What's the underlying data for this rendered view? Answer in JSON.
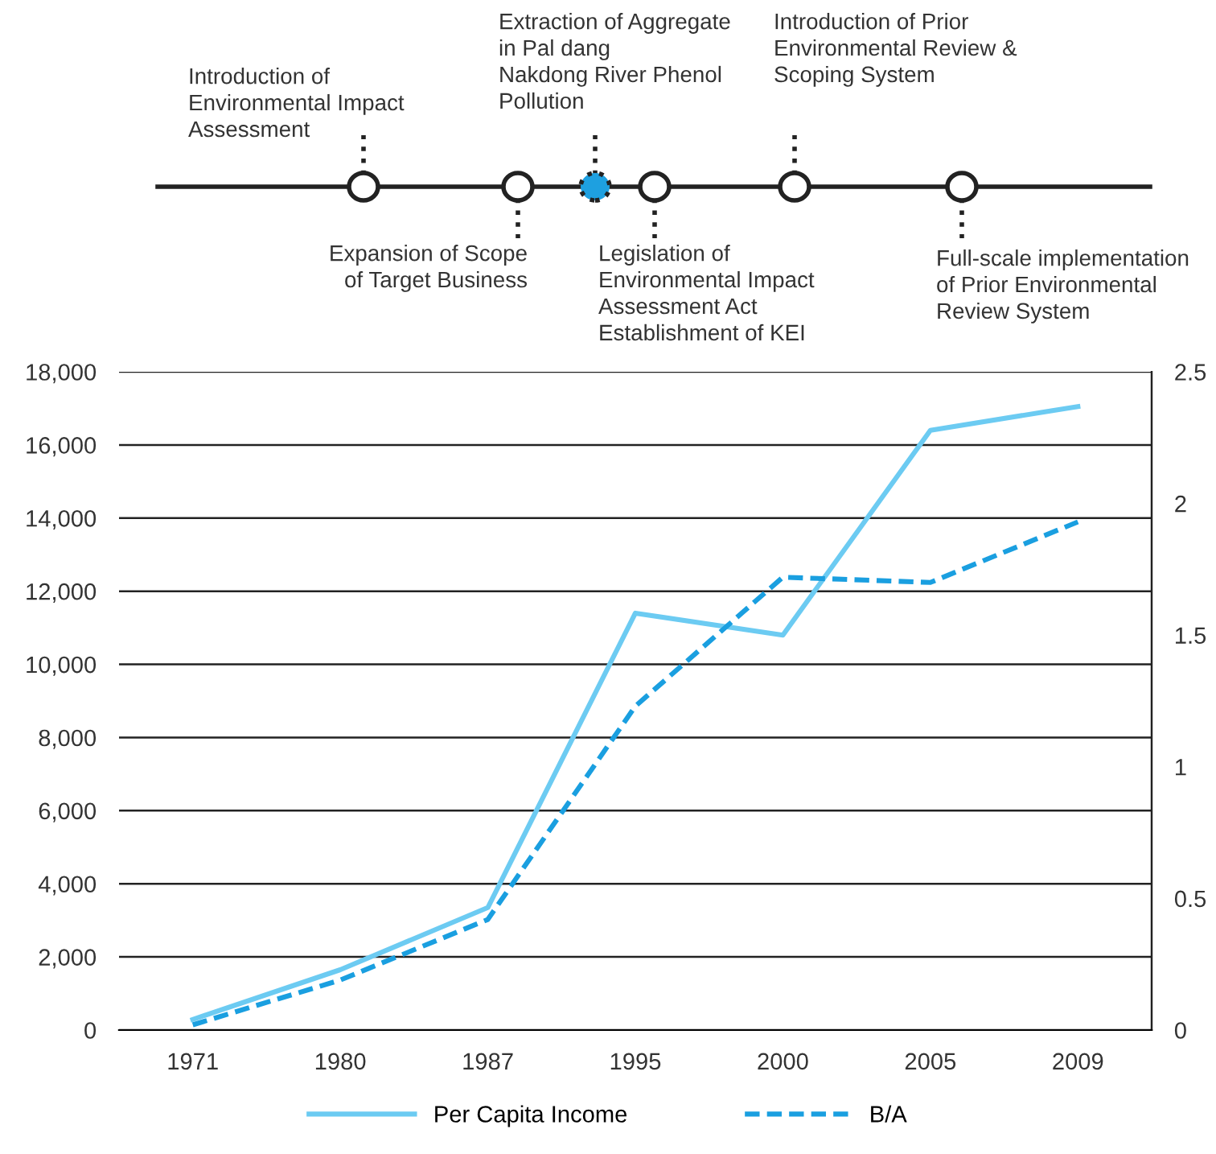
{
  "chart_data": {
    "type": "line",
    "categories": [
      "1971",
      "1980",
      "1987",
      "1995",
      "2000",
      "2005",
      "2009"
    ],
    "series": [
      {
        "name": "Per Capita Income",
        "color": "#6ccbf2",
        "line_style": "solid",
        "values": [
          290,
          1650,
          3350,
          11400,
          10800,
          16400,
          17050
        ]
      },
      {
        "name": "B/A",
        "color": "#1a9fe0",
        "line_style": "dashed",
        "axis": "y2",
        "values": [
          0.02,
          0.19,
          0.42,
          1.23,
          1.72,
          1.7,
          1.93
        ]
      }
    ],
    "ylim": [
      0,
      18000
    ],
    "yticks": [
      0,
      {
        "value": 2000,
        "label": "2,000"
      },
      {
        "value": 4000,
        "label": "4,000"
      },
      {
        "value": 6000,
        "label": "6,000"
      },
      {
        "value": 8000,
        "label": "8,000"
      },
      {
        "value": 10000,
        "label": "10,000"
      },
      {
        "value": 12000,
        "label": "12,000"
      },
      {
        "value": 14000,
        "label": "14,000"
      },
      {
        "value": 16000,
        "label": "16,000"
      },
      {
        "value": 18000,
        "label": "18,000"
      }
    ],
    "y2lim": [
      0,
      2.5
    ],
    "y2ticks": [
      0,
      {
        "value": 0.5,
        "label": "0.5"
      },
      1,
      {
        "value": 1.5,
        "label": "1.5"
      },
      2,
      {
        "value": 2.5,
        "label": "2.5"
      }
    ],
    "grid": "y",
    "legend": "bottom",
    "marker": "none",
    "annotations": [
      "Introduction of\nEnvironmental Impact\nAssessment",
      "Expansion of Scope\nof Target Business",
      "Extraction of Aggregate\nin Pal dang\nNakdong River Phenol\nPollution",
      "Legislation of\nEnvironmental Impact\nAssessment Act\nEstablishment of KEI",
      "Introduction of Prior\nEnvironmental Review &\nScoping System",
      "Full-scale implementation\nof Prior Environmental\nReview System"
    ]
  }
}
